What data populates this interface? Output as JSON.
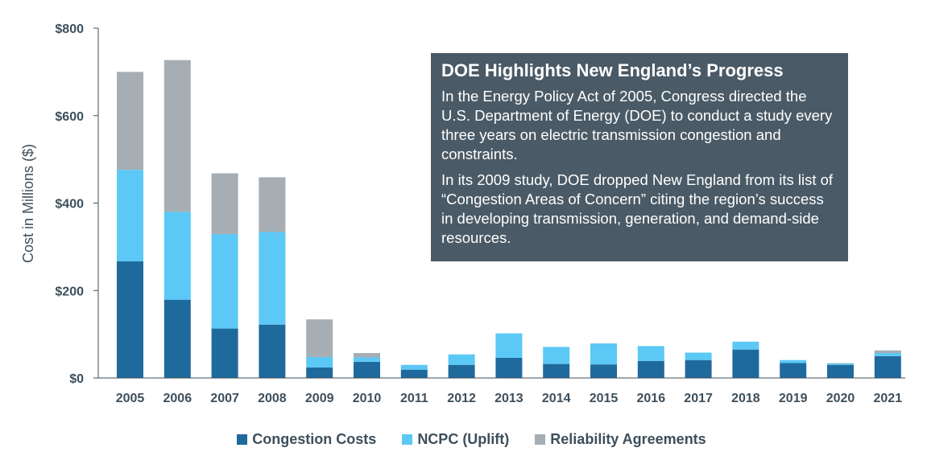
{
  "chart_data": {
    "type": "bar",
    "stacked": true,
    "categories": [
      "2005",
      "2006",
      "2007",
      "2008",
      "2009",
      "2010",
      "2011",
      "2012",
      "2013",
      "2014",
      "2015",
      "2016",
      "2017",
      "2018",
      "2019",
      "2020",
      "2021"
    ],
    "series": [
      {
        "name": "Congestion Costs",
        "color": "#1f6a9c",
        "values": [
          267,
          179,
          113,
          122,
          24,
          37,
          19,
          30,
          46,
          32,
          31,
          39,
          41,
          65,
          34,
          30,
          50
        ]
      },
      {
        "name": "NCPC (Uplift)",
        "color": "#5bc8f5",
        "values": [
          209,
          201,
          216,
          212,
          24,
          10,
          11,
          24,
          56,
          39,
          48,
          34,
          17,
          18,
          7,
          3,
          7
        ]
      },
      {
        "name": "Reliability Agreements",
        "color": "#a6aeb4",
        "values": [
          224,
          347,
          139,
          125,
          86,
          10,
          0,
          0,
          0,
          0,
          0,
          0,
          0,
          0,
          0,
          1,
          6
        ]
      }
    ],
    "ylabel": "Cost in Millions ($)",
    "ylim": [
      0,
      800
    ],
    "yticks": [
      0,
      200,
      400,
      600,
      800
    ],
    "ytick_labels": [
      "$0",
      "$200",
      "$400",
      "$600",
      "$800"
    ],
    "legend_position": "bottom-center",
    "grid": false
  },
  "callout": {
    "title": "DOE Highlights New England’s Progress",
    "paragraph1": "In the Energy Policy Act of 2005, Congress directed the U.S. Department of Energy (DOE) to conduct a study every three years on electric transmission congestion and constraints.",
    "paragraph2": "In its 2009 study, DOE dropped New England from its list of “Congestion Areas of Concern” citing the region’s success in developing transmission, generation, and demand-side resources."
  },
  "colors": {
    "text": "#3d4f5c",
    "callout_background": "#4a5a66",
    "axis": "#3d4f5c"
  }
}
